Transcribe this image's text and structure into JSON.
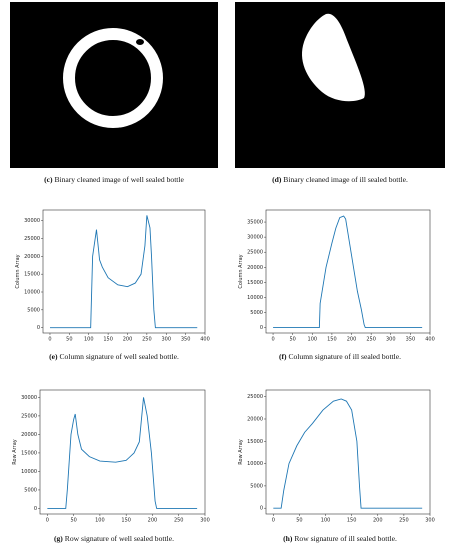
{
  "images": [
    {
      "caption_label": "(c)",
      "caption": "Binary cleaned image of well sealed bottle"
    },
    {
      "caption_label": "(d)",
      "caption": "Binary cleaned image of ill sealed bottle."
    }
  ],
  "chart_data": [
    {
      "type": "line",
      "caption_label": "(e)",
      "caption": "Column signature of well sealed bottle.",
      "y_label": "Column Array",
      "color": "#1f77b4",
      "x": [
        0,
        105,
        110,
        120,
        128,
        135,
        150,
        175,
        200,
        220,
        235,
        245,
        250,
        258,
        262,
        268,
        272,
        380
      ],
      "values": [
        0,
        0,
        20000,
        27500,
        19000,
        17000,
        14000,
        12000,
        11500,
        12500,
        15000,
        23000,
        31500,
        28000,
        20000,
        5000,
        0,
        0
      ],
      "xlim": [
        -18,
        400
      ],
      "xticks": [
        0,
        50,
        100,
        150,
        200,
        250,
        300,
        350,
        400
      ],
      "ylim": [
        -1500,
        33000
      ],
      "yticks": [
        0,
        5000,
        10000,
        15000,
        20000,
        25000,
        30000
      ]
    },
    {
      "type": "line",
      "caption_label": "(f)",
      "caption": "Column signature of ill sealed bottle.",
      "y_label": "Column Array",
      "color": "#1f77b4",
      "x": [
        0,
        118,
        120,
        135,
        150,
        160,
        170,
        180,
        185,
        195,
        205,
        215,
        225,
        232,
        235,
        380
      ],
      "values": [
        0,
        0,
        8000,
        20000,
        28000,
        33000,
        36500,
        37000,
        36000,
        28000,
        20000,
        12000,
        6000,
        1000,
        0,
        0
      ],
      "xlim": [
        -18,
        400
      ],
      "xticks": [
        0,
        50,
        100,
        150,
        200,
        250,
        300,
        350,
        400
      ],
      "ylim": [
        -1800,
        39000
      ],
      "yticks": [
        0,
        5000,
        10000,
        15000,
        20000,
        25000,
        30000,
        35000
      ]
    },
    {
      "type": "line",
      "caption_label": "(g)",
      "caption": "Row signature of well sealed bottle.",
      "y_label": "Row Array",
      "color": "#1f77b4",
      "x": [
        0,
        35,
        38,
        45,
        50,
        53,
        58,
        65,
        80,
        100,
        130,
        150,
        165,
        175,
        183,
        190,
        198,
        205,
        208,
        285
      ],
      "values": [
        0,
        0,
        5000,
        20000,
        24000,
        25500,
        20000,
        16000,
        14000,
        12800,
        12500,
        13000,
        15000,
        18000,
        30000,
        25000,
        15000,
        2000,
        0,
        0
      ],
      "xlim": [
        -14,
        300
      ],
      "xticks": [
        0,
        50,
        100,
        150,
        200,
        250,
        300
      ],
      "ylim": [
        -1500,
        32000
      ],
      "yticks": [
        0,
        5000,
        10000,
        15000,
        20000,
        25000,
        30000
      ]
    },
    {
      "type": "line",
      "caption_label": "(h)",
      "caption": "Row signature of ill sealed bottle.",
      "y_label": "Row Array",
      "color": "#1f77b4",
      "x": [
        0,
        15,
        20,
        30,
        45,
        60,
        75,
        95,
        115,
        130,
        140,
        150,
        160,
        165,
        168,
        285
      ],
      "values": [
        0,
        0,
        4000,
        10000,
        14000,
        17000,
        19000,
        22000,
        24000,
        24500,
        24000,
        22000,
        15000,
        5000,
        0,
        0
      ],
      "xlim": [
        -14,
        300
      ],
      "xticks": [
        0,
        50,
        100,
        150,
        200,
        250,
        300
      ],
      "ylim": [
        -1300,
        26500
      ],
      "yticks": [
        0,
        5000,
        10000,
        15000,
        20000,
        25000
      ]
    }
  ]
}
